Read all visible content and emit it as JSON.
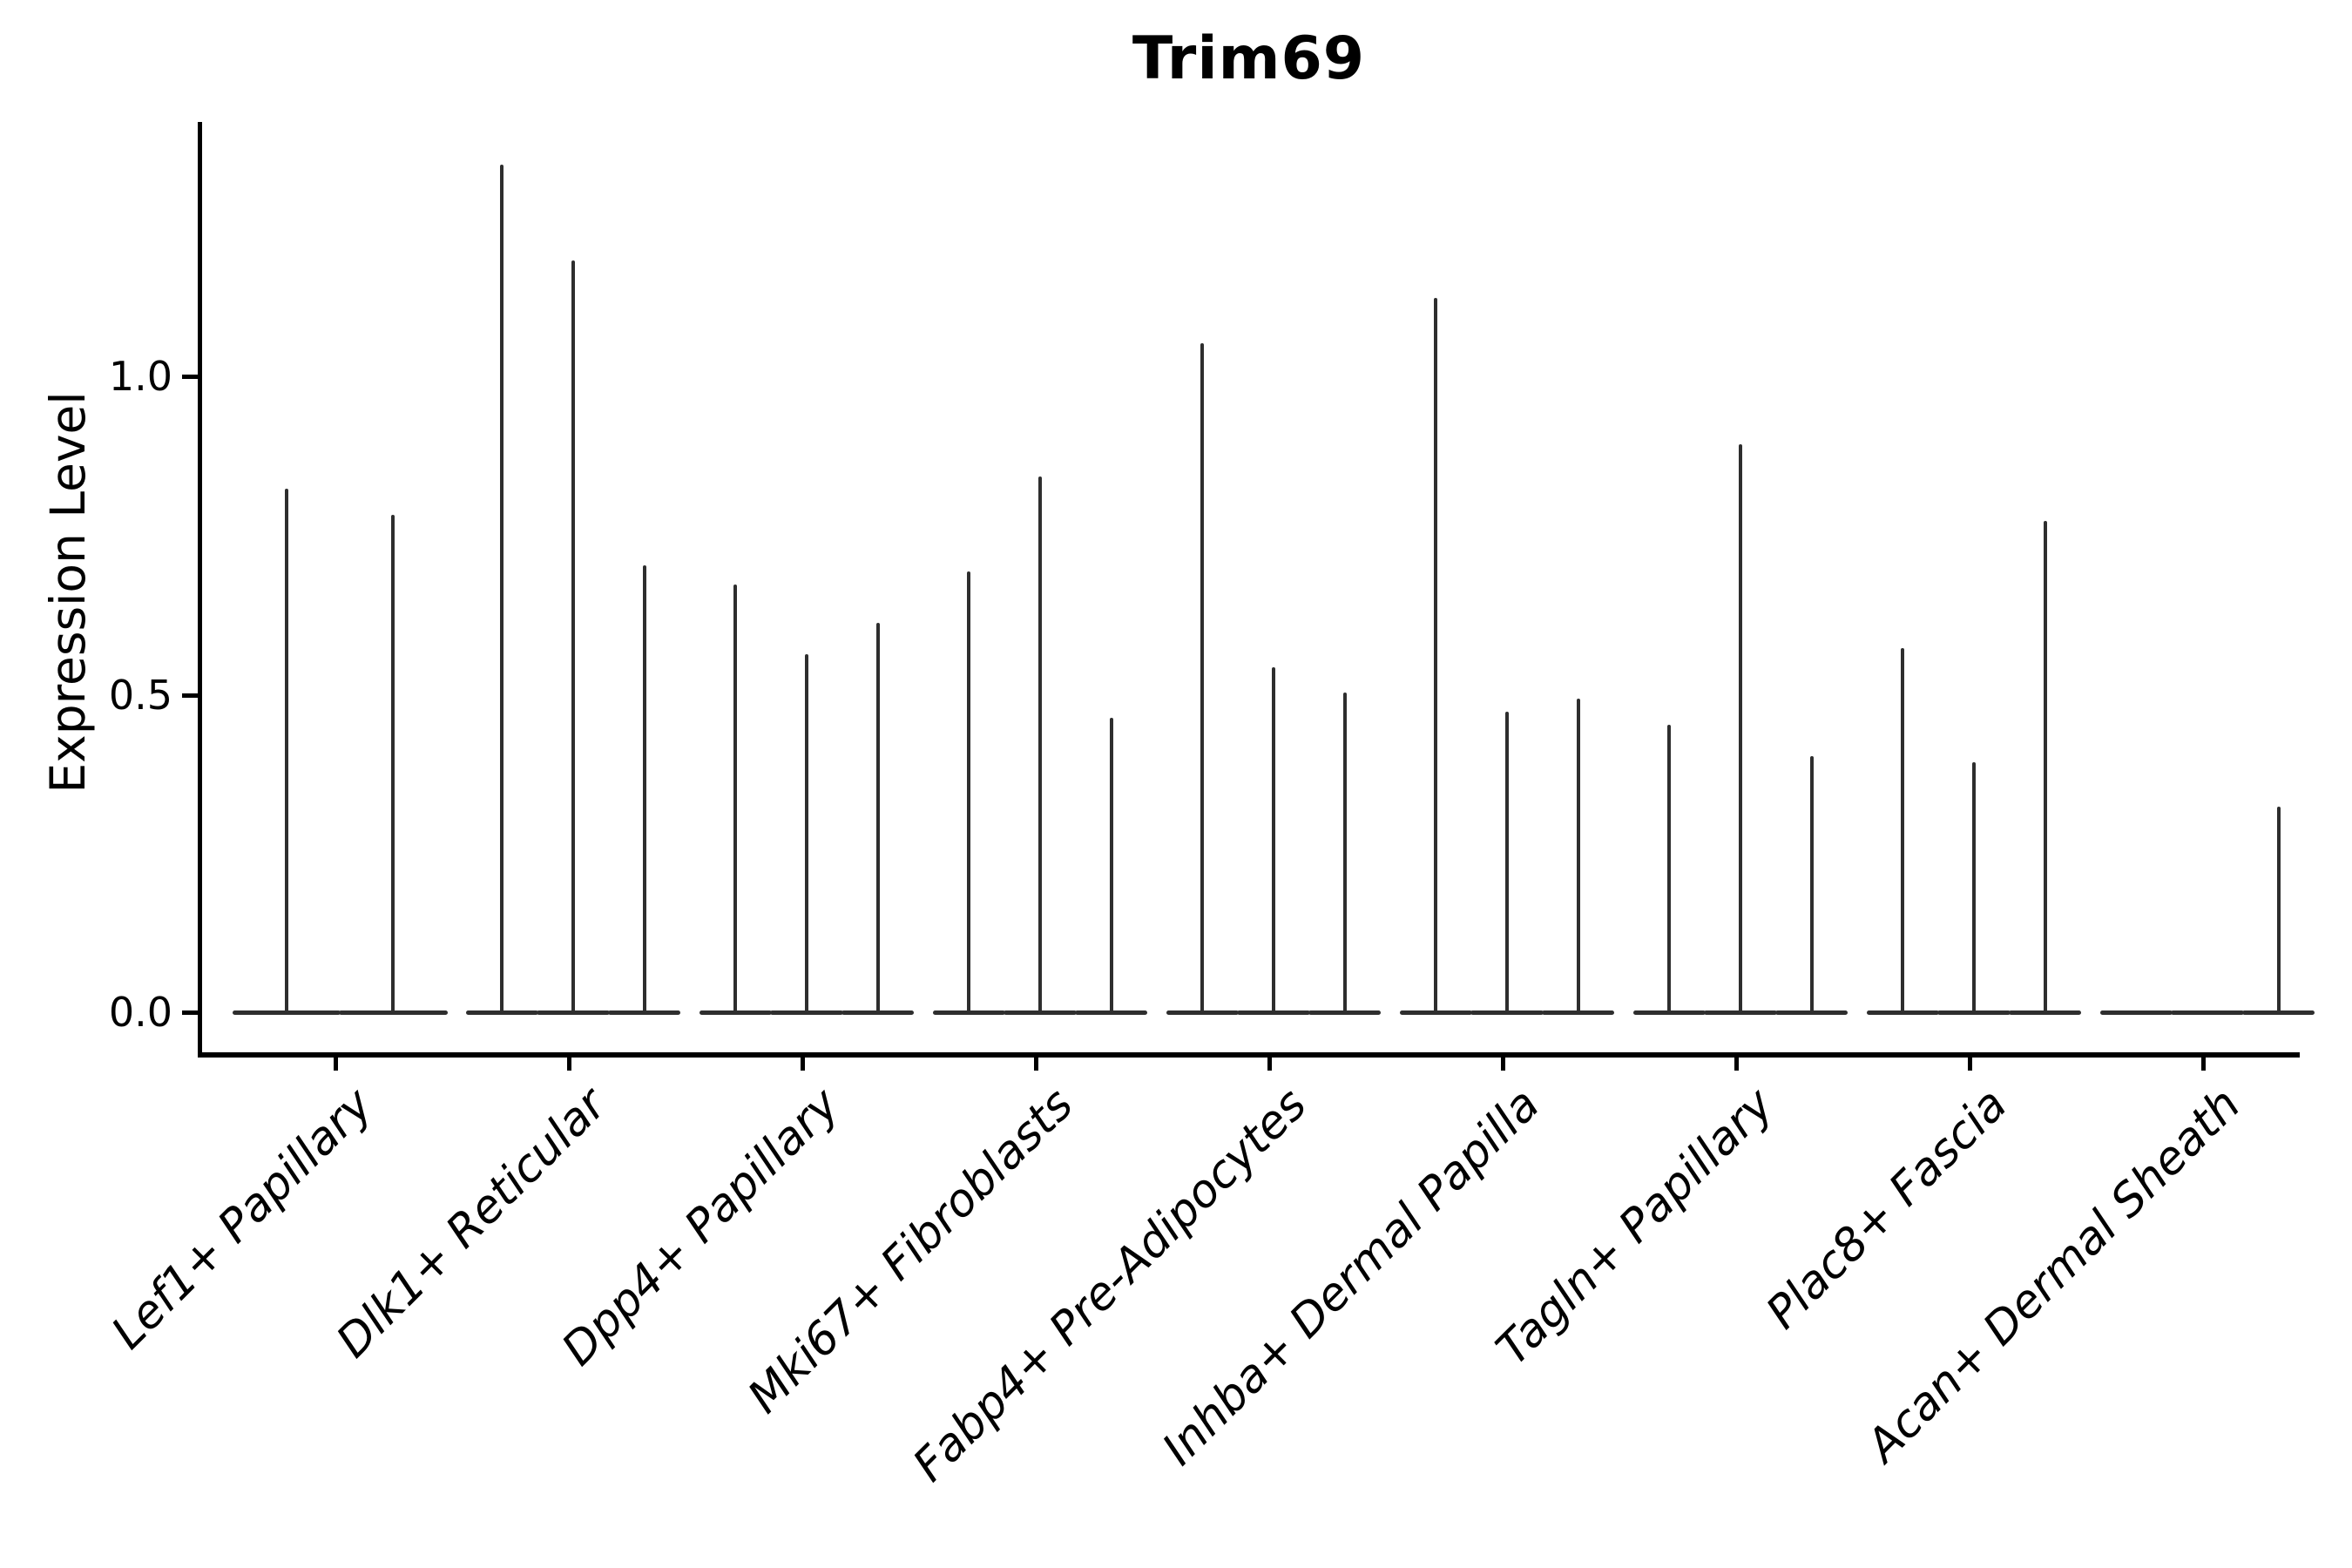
{
  "title": "Trim69",
  "colors": {
    "ink": "#2e2e2e",
    "spine": "#000000",
    "text": "#000000",
    "background": "#ffffff"
  },
  "chart_data": {
    "type": "violin",
    "title": "Trim69",
    "xlabel": "",
    "ylabel": "Expression Level",
    "ytick_labels": [
      "0.0",
      "0.5",
      "1.0"
    ],
    "ytick_values": [
      0.0,
      0.5,
      1.0
    ],
    "ylim": [
      -0.07,
      1.4
    ],
    "grid": false,
    "legend": "none",
    "note": "Stacked-violin style expression plot; each category shows thin collapsed violins (flat base at 0 with a spike to the maximum expression value). Violin maxima estimated from axis scale.",
    "categories": [
      "Lef1+ Papillary",
      "Dlk1+ Reticular",
      "Dpp4+ Papillary",
      "Mki67+ Fibroblasts",
      "Fabp4+ Pre-Adipocytes",
      "Inhba+ Dermal Papilla",
      "Tagln+ Papillary",
      "Plac8+ Fascia",
      "Acan+ Dermal Sheath"
    ],
    "groups": [
      {
        "label": "Lef1+ Papillary",
        "violin_maxima": [
          0.82,
          0.78
        ]
      },
      {
        "label": "Dlk1+ Reticular",
        "violin_maxima": [
          1.33,
          1.18,
          0.7
        ]
      },
      {
        "label": "Dpp4+ Papillary",
        "violin_maxima": [
          0.67,
          0.56,
          0.61
        ]
      },
      {
        "label": "Mki67+ Fibroblasts",
        "violin_maxima": [
          0.69,
          0.84,
          0.46
        ]
      },
      {
        "label": "Fabp4+ Pre-Adipocytes",
        "violin_maxima": [
          1.05,
          0.54,
          0.5
        ]
      },
      {
        "label": "Inhba+ Dermal Papilla",
        "violin_maxima": [
          1.12,
          0.47,
          0.49
        ]
      },
      {
        "label": "Tagln+ Papillary",
        "violin_maxima": [
          0.45,
          0.89,
          0.4
        ]
      },
      {
        "label": "Plac8+ Fascia",
        "violin_maxima": [
          0.57,
          0.39,
          0.77
        ]
      },
      {
        "label": "Acan+ Dermal Sheath",
        "violin_maxima": [
          0.0,
          0.0,
          0.32
        ]
      }
    ]
  }
}
